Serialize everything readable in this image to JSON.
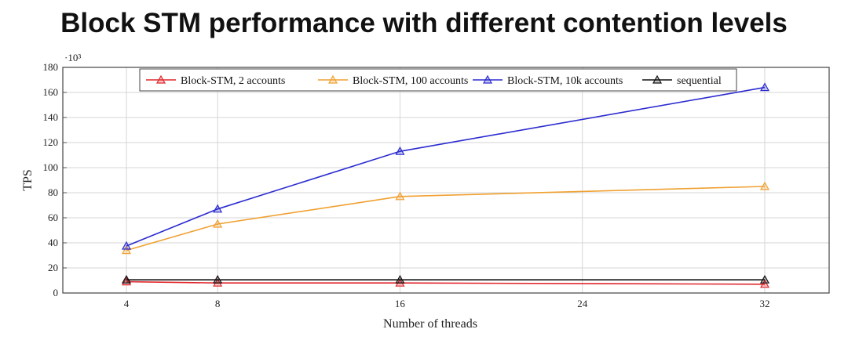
{
  "chart_data": {
    "type": "line",
    "title": "Block STM performance with different contention levels",
    "xlabel": "Number of threads",
    "ylabel": "TPS",
    "y_multiplier": "·10³",
    "x": [
      4,
      8,
      16,
      32
    ],
    "xticks": [
      4,
      8,
      16,
      24,
      32
    ],
    "yticks": [
      0,
      20,
      40,
      60,
      80,
      100,
      120,
      140,
      160,
      180
    ],
    "xlim": [
      1,
      38
    ],
    "ylim": [
      0,
      180
    ],
    "grid": true,
    "legend_position": "top",
    "series": [
      {
        "name": "Block-STM, 2 accounts",
        "color": "#e0262b",
        "values": [
          9,
          8,
          8,
          7
        ]
      },
      {
        "name": "Block-STM, 100 accounts",
        "color": "#f0a030",
        "values": [
          34,
          55,
          77,
          85
        ]
      },
      {
        "name": "Block-STM, 10k accounts",
        "color": "#2b2bd0",
        "values": [
          37.5,
          67,
          113,
          164
        ]
      },
      {
        "name": "sequential",
        "color": "#111111",
        "values": [
          10.5,
          10.5,
          10.5,
          10.5
        ]
      }
    ]
  }
}
